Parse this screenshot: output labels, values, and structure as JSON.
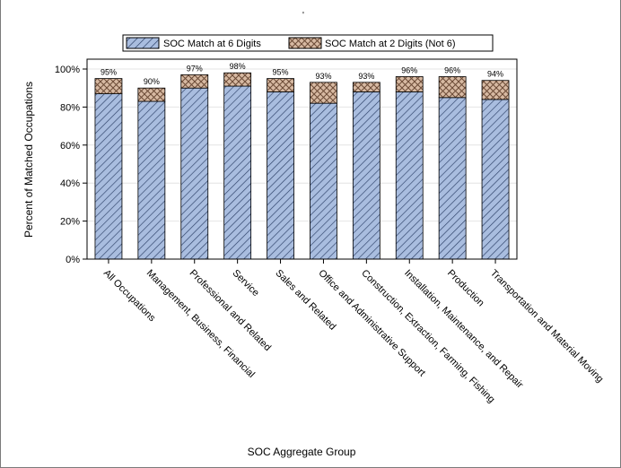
{
  "chart_data": {
    "type": "bar",
    "stacked": true,
    "title": "",
    "xlabel": "SOC Aggregate Group",
    "ylabel": "Percent of Matched Occupations",
    "ylim": [
      0,
      100
    ],
    "yticks": [
      "0%",
      "20%",
      "40%",
      "60%",
      "80%",
      "100%"
    ],
    "grid": true,
    "legend_position": "top",
    "categories": [
      "All Occupations",
      "Management, Business, Financial",
      "Professional and Related",
      "Service",
      "Sales and Related",
      "Office and Administrative Support",
      "Construction, Extraction, Farming, Fishing",
      "Installation, Maintenance, and Repair",
      "Production",
      "Transportation and Material Moving"
    ],
    "series": [
      {
        "name": "SOC Match at 6 Digits",
        "color": "#a9bddf",
        "pattern": "diagonal-lines",
        "values": [
          87,
          83,
          90,
          91,
          88,
          82,
          88,
          88,
          85,
          84
        ]
      },
      {
        "name": "SOC Match at 2 Digits (Not 6)",
        "color": "#d7b9a2",
        "pattern": "crosshatch",
        "values": [
          8,
          7,
          7,
          7,
          7,
          11,
          5,
          8,
          11,
          10
        ]
      }
    ],
    "data_labels": [
      "95%",
      "90%",
      "97%",
      "98%",
      "95%",
      "93%",
      "93%",
      "96%",
      "96%",
      "94%"
    ]
  }
}
